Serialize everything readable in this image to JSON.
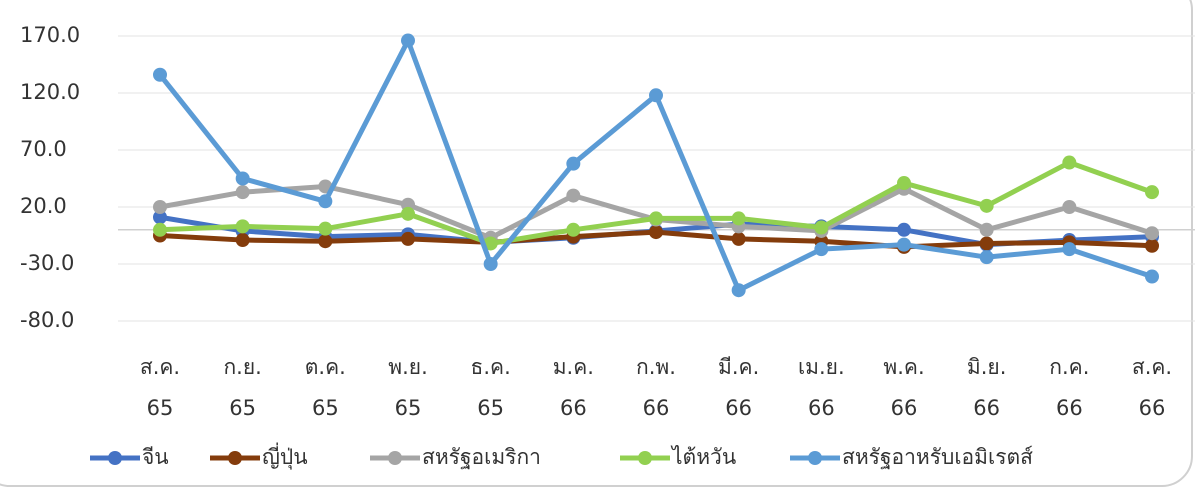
{
  "chart_data": {
    "type": "line",
    "categories": [
      [
        "ส.ค.",
        "65"
      ],
      [
        "ก.ย.",
        "65"
      ],
      [
        "ต.ค.",
        "65"
      ],
      [
        "พ.ย.",
        "65"
      ],
      [
        "ธ.ค.",
        "65"
      ],
      [
        "ม.ค.",
        "66"
      ],
      [
        "ก.พ.",
        "66"
      ],
      [
        "มี.ค.",
        "66"
      ],
      [
        "เม.ย.",
        "66"
      ],
      [
        "พ.ค.",
        "66"
      ],
      [
        "มิ.ย.",
        "66"
      ],
      [
        "ก.ค.",
        "66"
      ],
      [
        "ส.ค.",
        "66"
      ]
    ],
    "series": [
      {
        "name": "จีน",
        "color": "#4472c4",
        "values": [
          11,
          -1,
          -6,
          -4,
          -11,
          -7,
          -1,
          5,
          3,
          0,
          -13,
          -9,
          -6
        ]
      },
      {
        "name": "ญี่ปุ่น",
        "color": "#843c0c",
        "values": [
          -5,
          -9,
          -10,
          -8,
          -11,
          -6,
          -2,
          -8,
          -10,
          -15,
          -12,
          -11,
          -14
        ]
      },
      {
        "name": "สหรัฐอเมริกา",
        "color": "#a5a5a5",
        "values": [
          20,
          33,
          38,
          22,
          -7,
          30,
          9,
          3,
          -1,
          36,
          0,
          20,
          -3
        ]
      },
      {
        "name": "ไต้หวัน",
        "color": "#92d050",
        "values": [
          0,
          3,
          1,
          14,
          -12,
          0,
          10,
          10,
          2,
          41,
          21,
          59,
          33
        ]
      },
      {
        "name": "สหรัฐอาหรับเอมิเรตส์",
        "color": "#5b9bd5",
        "values": [
          136,
          45,
          25,
          166,
          -30,
          58,
          118,
          -53,
          -17,
          -13,
          -24,
          -17,
          -41
        ]
      }
    ],
    "ylim": [
      -80,
      170
    ],
    "yticks": [
      {
        "value": -80,
        "label": "-80.0"
      },
      {
        "value": -30,
        "label": "-30.0"
      },
      {
        "value": 20,
        "label": "20.0"
      },
      {
        "value": 70,
        "label": "70.0"
      },
      {
        "value": 120,
        "label": "120.0"
      },
      {
        "value": 170,
        "label": "170.0"
      }
    ],
    "grid": true,
    "legend": "bottom"
  }
}
